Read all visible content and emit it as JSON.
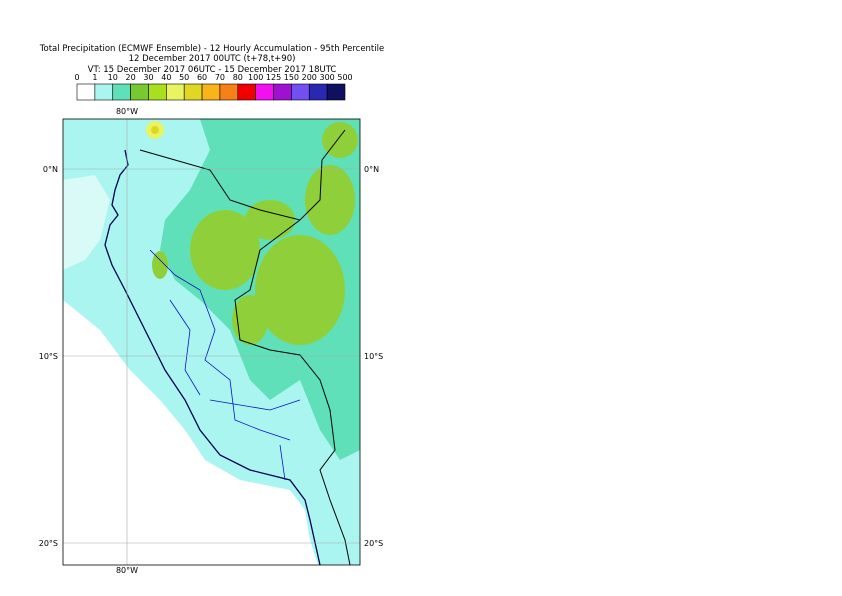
{
  "title": [
    "Total Precipitation (ECMWF Ensemble) - 12 Hourly Accumulation - 95th Percentile",
    "12 December 2017 00UTC (t+78,t+90)",
    "VT: 15 December 2017 06UTC - 15 December 2017 18UTC"
  ],
  "legend": {
    "labels": [
      0,
      1,
      10,
      20,
      30,
      40,
      50,
      60,
      70,
      80,
      100,
      125,
      150,
      200,
      300,
      500
    ],
    "colors": [
      "#ffffff",
      "#aaf5f0",
      "#5fe0b8",
      "#78c832",
      "#a8e020",
      "#e8f560",
      "#e0d820",
      "#f8b418",
      "#f88018",
      "#f00000",
      "#f010f0",
      "#a010d0",
      "#7050f0",
      "#2828b0",
      "#101060"
    ]
  },
  "map": {
    "lon_labels": [
      "80°W"
    ],
    "lat_labels": [
      "0°N",
      "10°S",
      "20°S"
    ]
  }
}
